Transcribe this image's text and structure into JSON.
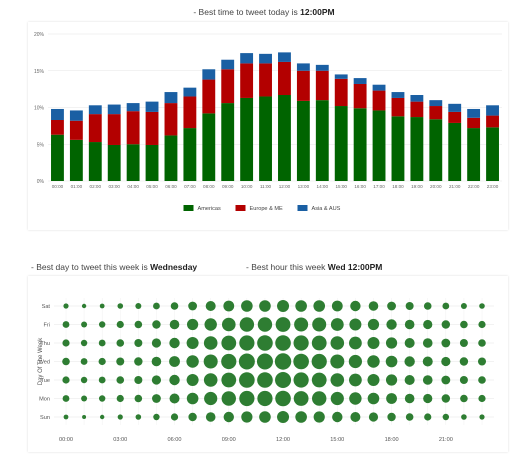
{
  "headlines": {
    "top_prefix": "- Best time to tweet today is ",
    "top_value": "12:00PM",
    "day_prefix": "- Best day to tweet this week is ",
    "day_value": "Wednesday",
    "hour_prefix": "- Best hour this week ",
    "hour_value": "Wed 12:00PM"
  },
  "colors": {
    "americas": "#006400",
    "europe": "#b30000",
    "asia": "#1a5fa3",
    "bubble": "#2e7d32",
    "grid": "#e6e6e6"
  },
  "chart_data": [
    {
      "type": "bar",
      "stacked": true,
      "title": "",
      "xlabel": "",
      "ylabel": "",
      "ylim": [
        0,
        20
      ],
      "yticks": [
        "0%",
        "5%",
        "10%",
        "15%",
        "20%"
      ],
      "legend_position": "bottom",
      "categories": [
        "00:00",
        "01:00",
        "02:00",
        "03:00",
        "04:00",
        "05:00",
        "06:00",
        "07:00",
        "08:00",
        "09:00",
        "10:00",
        "11:00",
        "12:00",
        "13:00",
        "14:00",
        "15:00",
        "16:00",
        "17:00",
        "18:00",
        "19:00",
        "20:00",
        "21:00",
        "22:00",
        "23:00"
      ],
      "series": [
        {
          "name": "Americas",
          "values": [
            6.3,
            5.6,
            5.3,
            4.9,
            5.0,
            4.9,
            6.2,
            7.2,
            9.2,
            10.6,
            11.3,
            11.5,
            11.7,
            10.9,
            11.0,
            10.2,
            9.9,
            9.6,
            8.8,
            8.7,
            8.4,
            7.9,
            7.2,
            7.3
          ]
        },
        {
          "name": "Europe & ME",
          "values": [
            2.0,
            2.6,
            3.8,
            4.2,
            4.5,
            4.5,
            4.4,
            4.3,
            4.6,
            4.6,
            4.7,
            4.5,
            4.5,
            4.1,
            4.0,
            3.7,
            3.3,
            2.7,
            2.5,
            2.1,
            1.8,
            1.5,
            1.4,
            1.6
          ]
        },
        {
          "name": "Asia & AUS",
          "values": [
            1.5,
            1.4,
            1.2,
            1.3,
            1.1,
            1.4,
            1.5,
            1.2,
            1.4,
            1.3,
            1.4,
            1.3,
            1.3,
            1.0,
            0.8,
            0.6,
            0.8,
            0.8,
            0.8,
            0.9,
            0.8,
            1.1,
            1.2,
            1.4
          ]
        }
      ]
    },
    {
      "type": "scatter",
      "subtype": "bubble",
      "title": "",
      "xlabel": "",
      "ylabel": "Day Of The Week",
      "x_ticks": [
        "00:00",
        "03:00",
        "06:00",
        "09:00",
        "12:00",
        "15:00",
        "18:00",
        "21:00"
      ],
      "x": [
        0,
        1,
        2,
        3,
        4,
        5,
        6,
        7,
        8,
        9,
        10,
        11,
        12,
        13,
        14,
        15,
        16,
        17,
        18,
        19,
        20,
        21,
        22,
        23
      ],
      "days": [
        "Sat",
        "Fri",
        "Thu",
        "Wed",
        "Tue",
        "Mon",
        "Sun"
      ],
      "series": [
        {
          "name": "Sat",
          "values": [
            2.6,
            2.2,
            2.4,
            2.8,
            3.0,
            3.4,
            3.8,
            4.4,
            5.0,
            5.4,
            5.8,
            5.8,
            6.0,
            5.8,
            5.8,
            5.4,
            5.2,
            4.8,
            4.4,
            4.0,
            3.8,
            3.4,
            3.0,
            2.8
          ]
        },
        {
          "name": "Fri",
          "values": [
            3.4,
            3.0,
            3.2,
            3.6,
            3.8,
            4.2,
            4.8,
            5.6,
            6.2,
            6.8,
            7.2,
            7.2,
            7.4,
            7.0,
            7.0,
            6.4,
            6.0,
            5.6,
            5.2,
            4.8,
            4.6,
            4.2,
            3.8,
            3.6
          ]
        },
        {
          "name": "Thu",
          "values": [
            3.6,
            3.2,
            3.4,
            3.8,
            4.0,
            4.6,
            5.2,
            6.0,
            6.8,
            7.4,
            7.6,
            7.8,
            7.8,
            7.6,
            7.4,
            6.8,
            6.4,
            6.0,
            5.6,
            5.0,
            4.8,
            4.4,
            4.0,
            3.8
          ]
        },
        {
          "name": "Wed",
          "values": [
            3.8,
            3.4,
            3.6,
            4.0,
            4.2,
            4.8,
            5.4,
            6.2,
            7.0,
            7.6,
            8.0,
            8.0,
            8.2,
            7.8,
            7.6,
            7.0,
            6.6,
            6.2,
            5.8,
            5.2,
            5.0,
            4.6,
            4.2,
            4.0
          ]
        },
        {
          "name": "Tue",
          "values": [
            3.6,
            3.2,
            3.4,
            3.8,
            4.0,
            4.6,
            5.2,
            6.0,
            6.8,
            7.4,
            7.8,
            7.8,
            8.0,
            7.6,
            7.4,
            6.8,
            6.4,
            6.0,
            5.6,
            5.0,
            4.8,
            4.4,
            4.0,
            3.8
          ]
        },
        {
          "name": "Mon",
          "values": [
            3.4,
            3.0,
            3.2,
            3.6,
            3.8,
            4.4,
            5.0,
            5.8,
            6.6,
            7.2,
            7.6,
            7.6,
            7.8,
            7.4,
            7.2,
            6.6,
            6.2,
            5.8,
            5.4,
            4.8,
            4.6,
            4.2,
            3.8,
            3.6
          ]
        },
        {
          "name": "Sun",
          "values": [
            2.4,
            2.0,
            2.2,
            2.6,
            2.8,
            3.2,
            3.6,
            4.2,
            4.8,
            5.2,
            5.6,
            5.8,
            6.0,
            5.8,
            5.6,
            5.2,
            5.0,
            4.6,
            4.2,
            3.8,
            3.6,
            3.2,
            2.8,
            2.6
          ]
        }
      ]
    }
  ]
}
